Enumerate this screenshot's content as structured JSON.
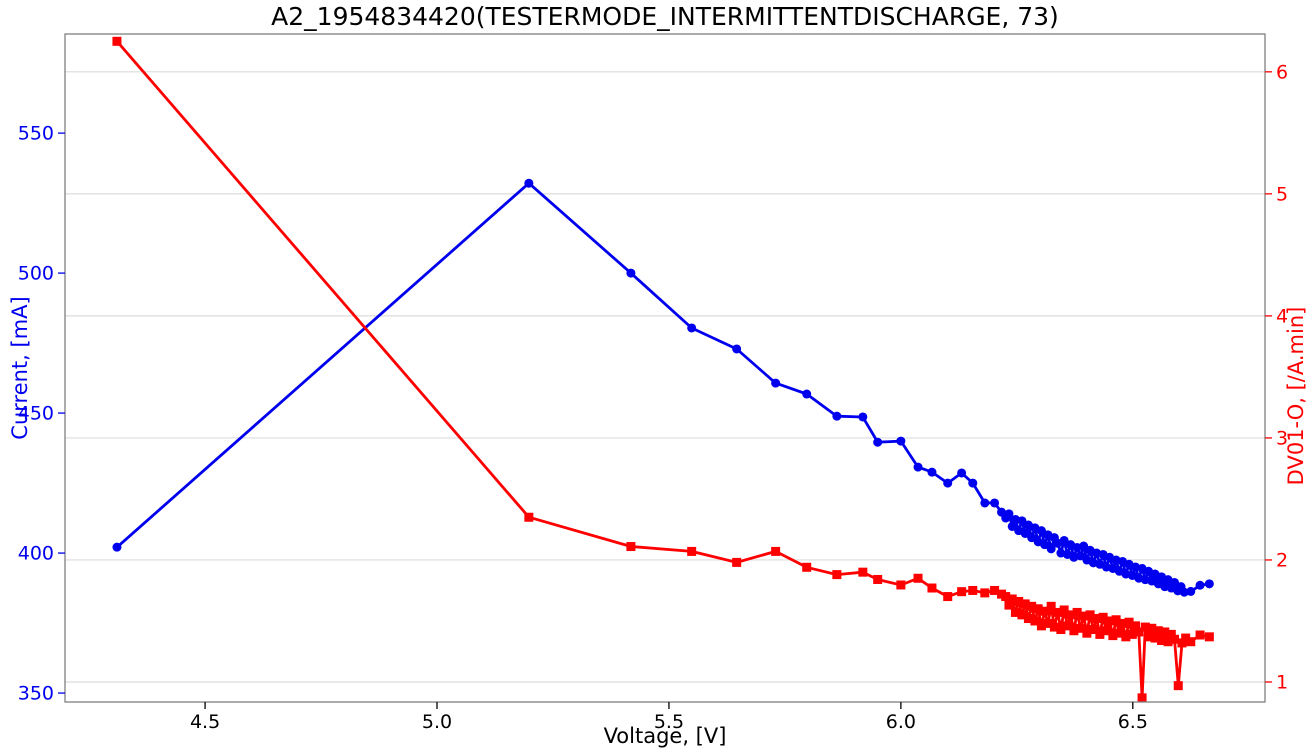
{
  "chart_data": {
    "type": "line",
    "title": "A2_1954834420(TESTERMODE_INTERMITTENTDISCHARGE, 73)",
    "xlabel": "Voltage, [V]",
    "xlim": [
      4.198,
      6.785
    ],
    "x_ticks": {
      "values": [
        4.5,
        5.0,
        5.5,
        6.0,
        6.5
      ],
      "labels": [
        "4.5",
        "5.0",
        "5.5",
        "6.0",
        "6.5"
      ],
      "color": "#000000"
    },
    "grid": {
      "horizontal": true,
      "vertical": false,
      "follows": "right_axis_ticks",
      "color": "#dcdcdc"
    },
    "spine_color": "#808080",
    "background": "#ffffff",
    "legend": "none",
    "left_axis": {
      "label": "Current, [mA]",
      "color": "#0000ee",
      "lim": [
        346.8,
        585.4
      ],
      "ticks": {
        "values": [
          350,
          400,
          450,
          500,
          550
        ],
        "labels": [
          "350",
          "400",
          "450",
          "500",
          "550"
        ]
      }
    },
    "right_axis": {
      "label": "DV01-O, [/A.min]",
      "color": "#ff0000",
      "lim": [
        0.836,
        6.31
      ],
      "ticks": {
        "values": [
          1,
          2,
          3,
          4,
          5,
          6
        ],
        "labels": [
          "1",
          "2",
          "3",
          "4",
          "5",
          "6"
        ]
      }
    },
    "series": [
      {
        "name": "Current, [mA]",
        "axis": "left",
        "color": "#0000ee",
        "marker": "circle",
        "marker_size": 9,
        "line_width": 2.8,
        "points": [
          [
            4.31,
            402.1
          ],
          [
            5.198,
            532.1
          ],
          [
            5.418,
            500.0
          ],
          [
            5.549,
            480.4
          ],
          [
            5.646,
            472.9
          ],
          [
            5.73,
            460.7
          ],
          [
            5.797,
            456.8
          ],
          [
            5.862,
            448.9
          ],
          [
            5.918,
            448.6
          ],
          [
            5.95,
            439.6
          ],
          [
            6.0,
            440.0
          ],
          [
            6.037,
            430.7
          ],
          [
            6.067,
            428.9
          ],
          [
            6.101,
            425.0
          ],
          [
            6.131,
            428.6
          ],
          [
            6.155,
            425.0
          ],
          [
            6.181,
            417.9
          ],
          [
            6.202,
            417.9
          ],
          [
            6.217,
            414.6
          ],
          [
            6.226,
            412.5
          ],
          [
            6.233,
            414.0
          ],
          [
            6.24,
            409.5
          ],
          [
            6.247,
            412.0
          ],
          [
            6.254,
            408.0
          ],
          [
            6.261,
            411.5
          ],
          [
            6.268,
            407.0
          ],
          [
            6.275,
            410.0
          ],
          [
            6.282,
            405.5
          ],
          [
            6.289,
            409.0
          ],
          [
            6.296,
            404.0
          ],
          [
            6.303,
            408.0
          ],
          [
            6.31,
            403.0
          ],
          [
            6.317,
            406.5
          ],
          [
            6.324,
            401.5
          ],
          [
            6.331,
            405.5
          ],
          [
            6.338,
            403.5
          ],
          [
            6.345,
            400.0
          ],
          [
            6.352,
            404.5
          ],
          [
            6.359,
            399.5
          ],
          [
            6.366,
            403.0
          ],
          [
            6.373,
            398.5
          ],
          [
            6.38,
            402.0
          ],
          [
            6.387,
            399.0
          ],
          [
            6.394,
            402.5
          ],
          [
            6.401,
            397.5
          ],
          [
            6.408,
            401.0
          ],
          [
            6.415,
            396.5
          ],
          [
            6.422,
            400.0
          ],
          [
            6.429,
            396.0
          ],
          [
            6.436,
            399.5
          ],
          [
            6.443,
            395.0
          ],
          [
            6.45,
            398.5
          ],
          [
            6.457,
            394.5
          ],
          [
            6.464,
            397.5
          ],
          [
            6.471,
            393.5
          ],
          [
            6.478,
            397.0
          ],
          [
            6.485,
            392.5
          ],
          [
            6.492,
            396.0
          ],
          [
            6.499,
            392.0
          ],
          [
            6.506,
            395.0
          ],
          [
            6.513,
            391.0
          ],
          [
            6.52,
            394.5
          ],
          [
            6.527,
            390.5
          ],
          [
            6.534,
            393.5
          ],
          [
            6.541,
            390.0
          ],
          [
            6.548,
            392.5
          ],
          [
            6.555,
            389.0
          ],
          [
            6.562,
            391.5
          ],
          [
            6.569,
            388.0
          ],
          [
            6.576,
            390.5
          ],
          [
            6.583,
            387.5
          ],
          [
            6.59,
            389.5
          ],
          [
            6.597,
            386.5
          ],
          [
            6.604,
            388.0
          ],
          [
            6.611,
            386.0
          ],
          [
            6.625,
            386.3
          ],
          [
            6.645,
            388.5
          ],
          [
            6.665,
            389.0
          ]
        ]
      },
      {
        "name": "DV01-O, [/A.min]",
        "axis": "right",
        "color": "#ff0000",
        "marker": "square",
        "marker_size": 9,
        "line_width": 2.8,
        "points": [
          [
            4.31,
            6.25
          ],
          [
            5.198,
            2.35
          ],
          [
            5.418,
            2.11
          ],
          [
            5.549,
            2.07
          ],
          [
            5.646,
            1.98
          ],
          [
            5.73,
            2.07
          ],
          [
            5.797,
            1.94
          ],
          [
            5.862,
            1.88
          ],
          [
            5.918,
            1.9
          ],
          [
            5.95,
            1.84
          ],
          [
            6.0,
            1.795
          ],
          [
            6.037,
            1.85
          ],
          [
            6.067,
            1.77
          ],
          [
            6.101,
            1.7
          ],
          [
            6.131,
            1.74
          ],
          [
            6.155,
            1.75
          ],
          [
            6.181,
            1.73
          ],
          [
            6.202,
            1.75
          ],
          [
            6.217,
            1.72
          ],
          [
            6.226,
            1.7
          ],
          [
            6.233,
            1.63
          ],
          [
            6.24,
            1.68
          ],
          [
            6.247,
            1.57
          ],
          [
            6.254,
            1.66
          ],
          [
            6.261,
            1.55
          ],
          [
            6.268,
            1.64
          ],
          [
            6.275,
            1.52
          ],
          [
            6.282,
            1.62
          ],
          [
            6.289,
            1.5
          ],
          [
            6.296,
            1.6
          ],
          [
            6.303,
            1.46
          ],
          [
            6.31,
            1.58
          ],
          [
            6.317,
            1.48
          ],
          [
            6.324,
            1.62
          ],
          [
            6.331,
            1.45
          ],
          [
            6.338,
            1.57
          ],
          [
            6.345,
            1.43
          ],
          [
            6.352,
            1.59
          ],
          [
            6.359,
            1.46
          ],
          [
            6.366,
            1.55
          ],
          [
            6.373,
            1.42
          ],
          [
            6.38,
            1.57
          ],
          [
            6.387,
            1.44
          ],
          [
            6.394,
            1.54
          ],
          [
            6.401,
            1.4
          ],
          [
            6.408,
            1.55
          ],
          [
            6.415,
            1.43
          ],
          [
            6.422,
            1.52
          ],
          [
            6.429,
            1.39
          ],
          [
            6.436,
            1.53
          ],
          [
            6.443,
            1.42
          ],
          [
            6.45,
            1.5
          ],
          [
            6.457,
            1.38
          ],
          [
            6.464,
            1.51
          ],
          [
            6.471,
            1.4
          ],
          [
            6.478,
            1.48
          ],
          [
            6.485,
            1.37
          ],
          [
            6.492,
            1.49
          ],
          [
            6.499,
            1.39
          ],
          [
            6.506,
            1.46
          ],
          [
            6.513,
            1.41
          ],
          [
            6.52,
            0.87
          ],
          [
            6.527,
            1.45
          ],
          [
            6.534,
            1.37
          ],
          [
            6.541,
            1.44
          ],
          [
            6.548,
            1.36
          ],
          [
            6.555,
            1.42
          ],
          [
            6.562,
            1.34
          ],
          [
            6.569,
            1.41
          ],
          [
            6.576,
            1.33
          ],
          [
            6.583,
            1.39
          ],
          [
            6.59,
            1.35
          ],
          [
            6.598,
            0.97
          ],
          [
            6.606,
            1.32
          ],
          [
            6.614,
            1.36
          ],
          [
            6.625,
            1.33
          ],
          [
            6.645,
            1.385
          ],
          [
            6.665,
            1.37
          ]
        ]
      }
    ]
  }
}
